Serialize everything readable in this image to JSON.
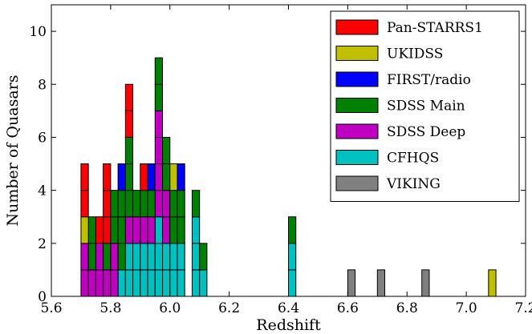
{
  "chart_data": {
    "type": "bar",
    "stacked": true,
    "title": "",
    "xlabel": "Redshift",
    "ylabel": "Number of Quasars",
    "xlim": [
      5.6,
      7.2
    ],
    "ylim": [
      0,
      11
    ],
    "bin_width": 0.025,
    "xticks": [
      "5.6",
      "5.8",
      "6.0",
      "6.2",
      "6.4",
      "6.6",
      "6.8",
      "7.0",
      "7.2"
    ],
    "yticks": [
      "0",
      "2",
      "4",
      "6",
      "8",
      "10"
    ],
    "legend_position": "top-right",
    "bins": [
      5.7,
      5.725,
      5.75,
      5.775,
      5.8,
      5.825,
      5.85,
      5.875,
      5.9,
      5.925,
      5.95,
      5.975,
      6.0,
      6.025,
      6.05,
      6.075,
      6.1,
      6.125,
      6.15,
      6.175,
      6.2,
      6.225,
      6.25,
      6.275,
      6.3,
      6.325,
      6.35,
      6.375,
      6.4,
      6.425,
      6.45,
      6.475,
      6.5,
      6.525,
      6.55,
      6.575,
      6.6,
      6.625,
      6.65,
      6.675,
      6.7,
      6.725,
      6.75,
      6.775,
      6.8,
      6.825,
      6.85,
      6.875,
      6.9,
      6.925,
      6.95,
      6.975,
      7.0,
      7.025,
      7.05,
      7.075
    ],
    "series": [
      {
        "name": "CFHQS",
        "color": "#00c0c0",
        "values": [
          0,
          0,
          0,
          0,
          0,
          1,
          2,
          2,
          2,
          2,
          3,
          2,
          2,
          2,
          0,
          3,
          1,
          0,
          0,
          0,
          0,
          0,
          0,
          0,
          0,
          0,
          0,
          0,
          2,
          0,
          0,
          0,
          0,
          0,
          0,
          0,
          0,
          0,
          0,
          0,
          0,
          0,
          0,
          0,
          0,
          0,
          0,
          0,
          0,
          0,
          0,
          0,
          0,
          0,
          0,
          0
        ]
      },
      {
        "name": "SDSS Deep",
        "color": "#c000c0",
        "values": [
          2,
          1,
          2,
          1,
          2,
          0,
          1,
          1,
          1,
          1,
          4,
          2,
          0,
          0,
          0,
          0,
          0,
          0,
          0,
          0,
          0,
          0,
          0,
          0,
          0,
          0,
          0,
          0,
          0,
          0,
          0,
          0,
          0,
          0,
          0,
          0,
          0,
          0,
          0,
          0,
          0,
          0,
          0,
          0,
          0,
          0,
          0,
          0,
          0,
          0,
          0,
          0,
          0,
          0,
          0,
          0
        ]
      },
      {
        "name": "SDSS Main",
        "color": "#008000",
        "values": [
          0,
          2,
          0,
          1,
          2,
          3,
          3,
          1,
          1,
          1,
          2,
          2,
          2,
          2,
          0,
          1,
          1,
          0,
          0,
          0,
          0,
          0,
          0,
          0,
          0,
          0,
          0,
          0,
          1,
          0,
          0,
          0,
          0,
          0,
          0,
          0,
          0,
          0,
          0,
          0,
          0,
          0,
          0,
          0,
          0,
          0,
          0,
          0,
          0,
          0,
          0,
          0,
          0,
          0,
          0,
          0
        ]
      },
      {
        "name": "FIRST/radio",
        "color": "#0000ff",
        "values": [
          0,
          0,
          0,
          0,
          0,
          1,
          0,
          0,
          0,
          1,
          0,
          0,
          0,
          1,
          0,
          0,
          0,
          0,
          0,
          0,
          0,
          0,
          0,
          0,
          0,
          0,
          0,
          0,
          0,
          0,
          0,
          0,
          0,
          0,
          0,
          0,
          0,
          0,
          0,
          0,
          0,
          0,
          0,
          0,
          0,
          0,
          0,
          0,
          0,
          0,
          0,
          0,
          0,
          0,
          0,
          0
        ]
      },
      {
        "name": "UKIDSS",
        "color": "#c0c000",
        "values": [
          1,
          0,
          0,
          0,
          0,
          0,
          0,
          0,
          0,
          0,
          0,
          0,
          1,
          0,
          0,
          0,
          0,
          0,
          0,
          0,
          0,
          0,
          0,
          0,
          0,
          0,
          0,
          0,
          0,
          0,
          0,
          0,
          0,
          0,
          0,
          0,
          0,
          0,
          0,
          0,
          0,
          0,
          0,
          0,
          0,
          0,
          0,
          0,
          0,
          0,
          0,
          0,
          0,
          0,
          0,
          1
        ]
      },
      {
        "name": "Pan-STARRS1",
        "color": "#ff0000",
        "values": [
          2,
          0,
          1,
          3,
          0,
          0,
          2,
          0,
          1,
          0,
          0,
          0,
          0,
          0,
          0,
          0,
          0,
          0,
          0,
          0,
          0,
          0,
          0,
          0,
          0,
          0,
          0,
          0,
          0,
          0,
          0,
          0,
          0,
          0,
          0,
          0,
          0,
          0,
          0,
          0,
          0,
          0,
          0,
          0,
          0,
          0,
          0,
          0,
          0,
          0,
          0,
          0,
          0,
          0,
          0,
          0
        ]
      },
      {
        "name": "VIKING",
        "color": "#808080",
        "values": [
          0,
          0,
          0,
          0,
          0,
          0,
          0,
          0,
          0,
          0,
          0,
          0,
          0,
          0,
          0,
          0,
          0,
          0,
          0,
          0,
          0,
          0,
          0,
          0,
          0,
          0,
          0,
          0,
          0,
          0,
          0,
          0,
          0,
          0,
          0,
          0,
          1,
          0,
          0,
          0,
          1,
          0,
          0,
          0,
          0,
          0,
          1,
          0,
          0,
          0,
          0,
          0,
          0,
          0,
          0,
          0
        ]
      }
    ],
    "legend_order": [
      "Pan-STARRS1",
      "UKIDSS",
      "FIRST/radio",
      "SDSS Main",
      "SDSS Deep",
      "CFHQS",
      "VIKING"
    ]
  }
}
